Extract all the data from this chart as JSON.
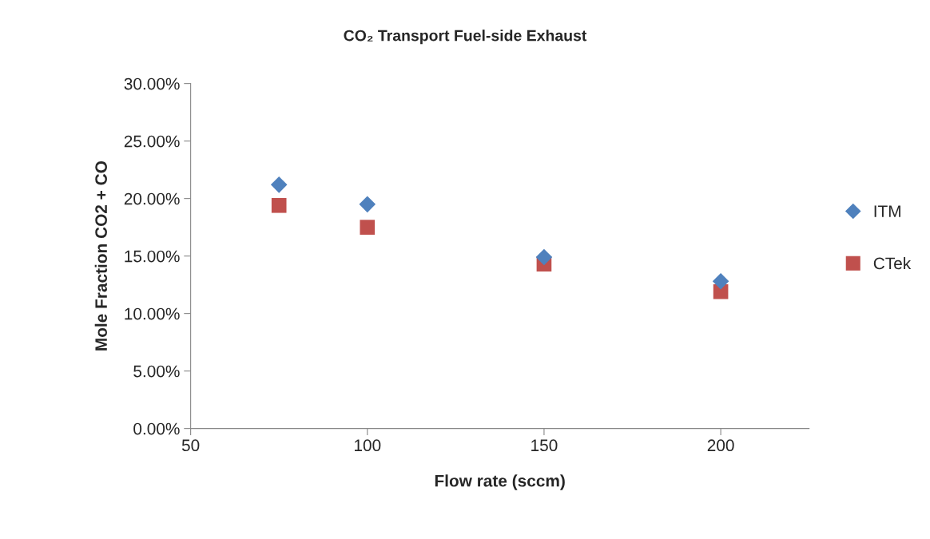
{
  "chart_data": {
    "type": "scatter",
    "title": "CO₂ Transport Fuel-side Exhaust",
    "xlabel": "Flow rate (sccm)",
    "ylabel": "Mole Fraction CO2 + CO",
    "x": [
      75,
      100,
      150,
      200
    ],
    "series": [
      {
        "name": "ITM",
        "color": "#4f81bd",
        "marker": "diamond",
        "values": [
          21.2,
          19.5,
          14.9,
          12.8
        ]
      },
      {
        "name": "CTek",
        "color": "#c0504d",
        "marker": "square",
        "values": [
          19.4,
          17.5,
          14.3,
          11.9
        ]
      }
    ],
    "xlim": [
      50,
      225
    ],
    "xticks": [
      50,
      100,
      150,
      200
    ],
    "ylim": [
      0,
      30
    ],
    "yticks": [
      {
        "value": 0,
        "label": "0.00%"
      },
      {
        "value": 5,
        "label": "5.00%"
      },
      {
        "value": 10,
        "label": "10.00%"
      },
      {
        "value": 15,
        "label": "15.00%"
      },
      {
        "value": 20,
        "label": "20.00%"
      },
      {
        "value": 25,
        "label": "25.00%"
      },
      {
        "value": 30,
        "label": "30.00%"
      }
    ],
    "grid": false,
    "legend": "right"
  }
}
